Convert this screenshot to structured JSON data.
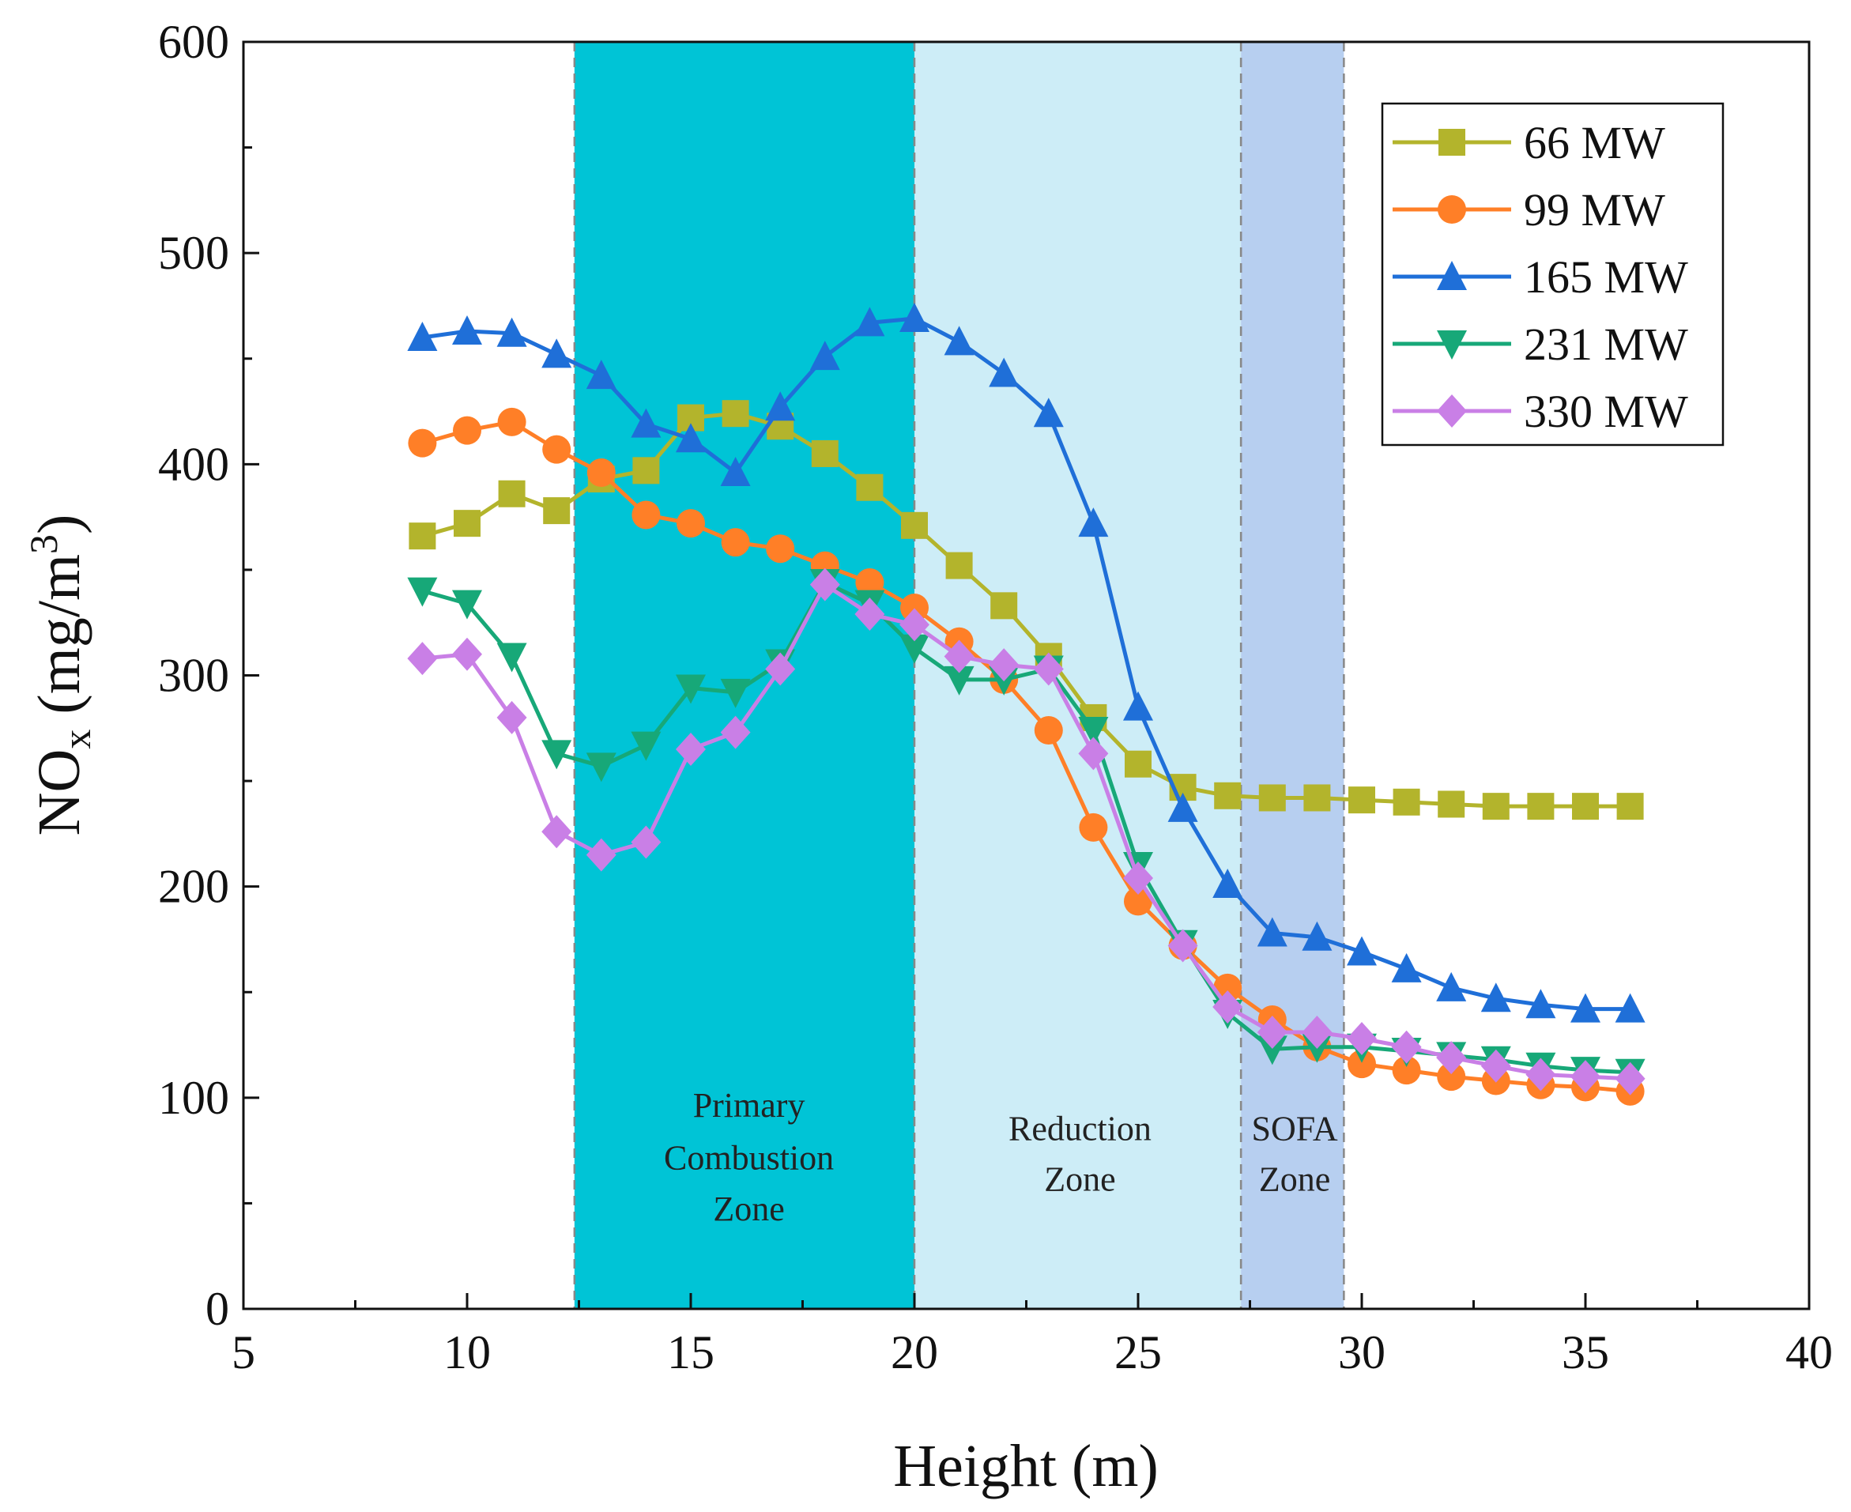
{
  "chart_data": {
    "type": "line",
    "title": "",
    "xlabel": "Height (m)",
    "ylabel": {
      "main": "NO",
      "sub": "x",
      "unit_pre": " (mg/m",
      "sup": "3",
      "unit_post": ")"
    },
    "xlim": [
      5,
      40
    ],
    "ylim": [
      0,
      600
    ],
    "xticks": [
      5,
      10,
      15,
      20,
      25,
      30,
      35,
      40
    ],
    "yticks": [
      0,
      100,
      200,
      300,
      400,
      500,
      600
    ],
    "grid": false,
    "legend_position": "top-right",
    "x": [
      9,
      10,
      11,
      12,
      13,
      14,
      15,
      16,
      17,
      18,
      19,
      20,
      21,
      22,
      23,
      24,
      25,
      26,
      27,
      28,
      29,
      30,
      31,
      32,
      33,
      34,
      35,
      36
    ],
    "series": [
      {
        "name": "66 MW",
        "color": "#b3b42c",
        "marker": "square",
        "values": [
          366,
          372,
          386,
          378,
          393,
          397,
          422,
          424,
          418,
          405,
          389,
          371,
          352,
          333,
          309,
          280,
          258,
          247,
          243,
          242,
          242,
          241,
          240,
          239,
          238,
          238,
          238,
          238
        ]
      },
      {
        "name": "99 MW",
        "color": "#ff7f27",
        "marker": "circle",
        "values": [
          410,
          416,
          420,
          407,
          396,
          376,
          372,
          363,
          360,
          352,
          344,
          332,
          316,
          298,
          274,
          228,
          193,
          172,
          152,
          137,
          124,
          116,
          113,
          110,
          108,
          106,
          105,
          103
        ]
      },
      {
        "name": "165 MW",
        "color": "#1f6fd8",
        "marker": "triangle-up",
        "values": [
          460,
          463,
          462,
          452,
          442,
          419,
          412,
          396,
          427,
          451,
          467,
          469,
          458,
          443,
          424,
          372,
          285,
          237,
          201,
          178,
          176,
          169,
          161,
          152,
          147,
          144,
          142,
          142
        ]
      },
      {
        "name": "231 MW",
        "color": "#17a878",
        "marker": "triangle-down",
        "values": [
          340,
          334,
          309,
          263,
          257,
          267,
          294,
          292,
          306,
          344,
          334,
          313,
          298,
          298,
          303,
          274,
          210,
          173,
          140,
          123,
          124,
          124,
          122,
          120,
          118,
          115,
          113,
          112
        ]
      },
      {
        "name": "330 MW",
        "color": "#c97fe6",
        "marker": "diamond",
        "values": [
          308,
          310,
          280,
          226,
          215,
          221,
          265,
          273,
          303,
          343,
          329,
          324,
          309,
          305,
          303,
          263,
          204,
          172,
          143,
          131,
          131,
          128,
          124,
          119,
          115,
          111,
          110,
          109
        ]
      }
    ],
    "zones": [
      {
        "label": [
          "Primary",
          "Combustion",
          "Zone"
        ],
        "from": 12.4,
        "to": 20,
        "color": "#00c4d6",
        "label_x": 16.3,
        "label_y": [
          91,
          66,
          42
        ]
      },
      {
        "label": [
          "Reduction",
          "Zone"
        ],
        "from": 20,
        "to": 27.3,
        "color": "#cdedf7",
        "label_x": 23.7,
        "label_y": [
          80,
          56
        ]
      },
      {
        "label": [
          "SOFA",
          "Zone"
        ],
        "from": 27.3,
        "to": 29.6,
        "color": "#b7cff0",
        "label_x": 28.5,
        "label_y": [
          80,
          56
        ]
      }
    ]
  }
}
